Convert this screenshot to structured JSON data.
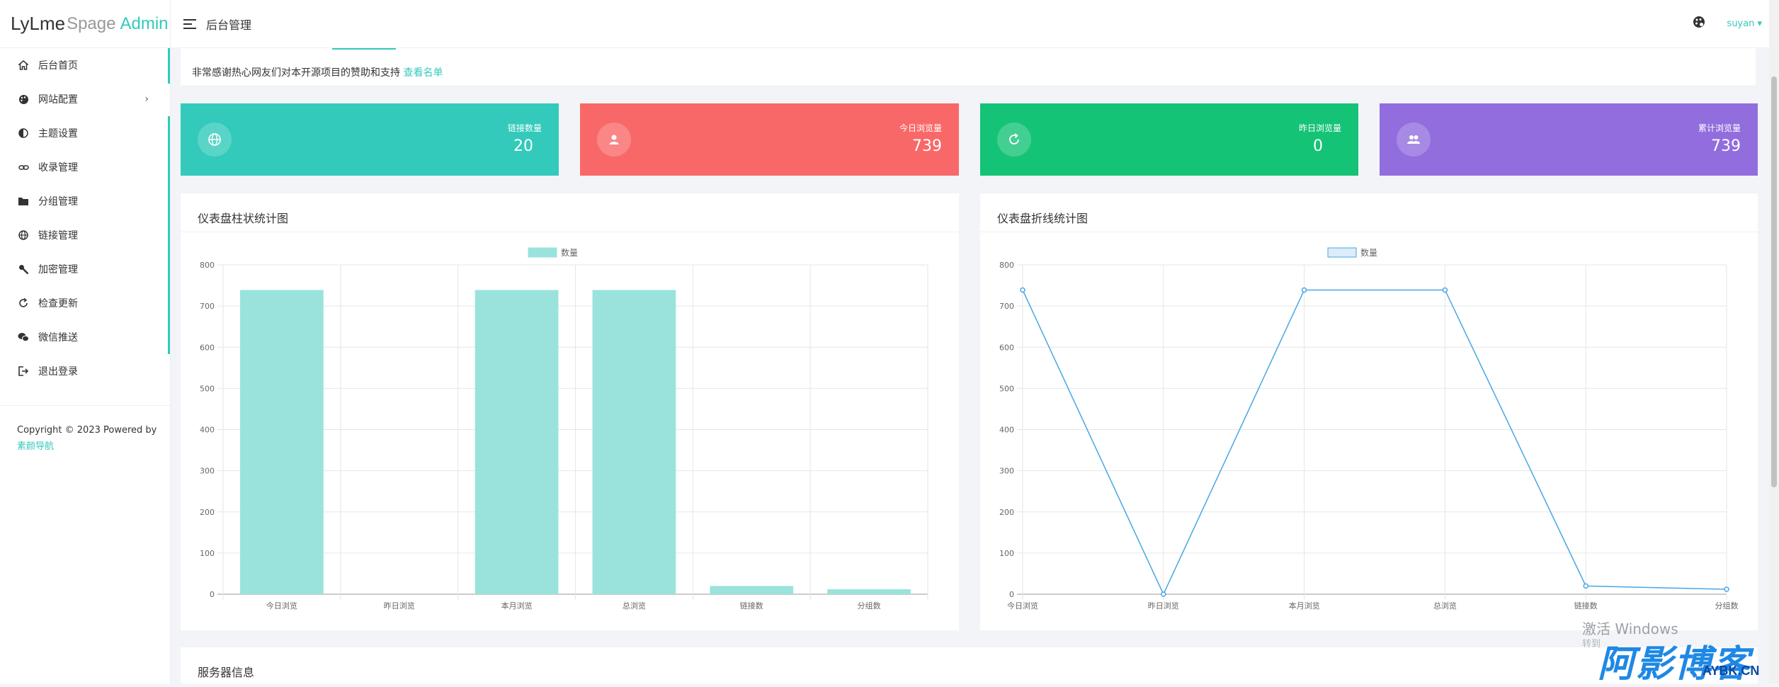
{
  "brand": {
    "part1": "LyLme",
    "part2": "Spage",
    "part3": "Admin"
  },
  "sidebar": {
    "items": [
      {
        "label": "后台首页",
        "icon": "home-icon"
      },
      {
        "label": "网站配置",
        "icon": "palette-icon",
        "arrow": "›"
      },
      {
        "label": "主题设置",
        "icon": "contrast-icon"
      },
      {
        "label": "收录管理",
        "icon": "link-icon"
      },
      {
        "label": "分组管理",
        "icon": "folder-icon"
      },
      {
        "label": "链接管理",
        "icon": "globe-icon"
      },
      {
        "label": "加密管理",
        "icon": "key-icon"
      },
      {
        "label": "检查更新",
        "icon": "refresh-icon"
      },
      {
        "label": "微信推送",
        "icon": "wechat-icon"
      },
      {
        "label": "退出登录",
        "icon": "logout-icon"
      }
    ],
    "copyright": "Copyright © 2023 Powered by",
    "copyright_link": "素颜导航"
  },
  "header": {
    "title": "后台管理",
    "user": "suyan ▾"
  },
  "notice": {
    "text": "非常感谢热心网友们对本开源项目的赞助和支持",
    "link": "查看名单"
  },
  "stats": [
    {
      "label": "链接数量",
      "value": "20",
      "color": "#33cabb",
      "icon": "globe-icon"
    },
    {
      "label": "今日浏览量",
      "value": "739",
      "color": "#f96868",
      "icon": "user-icon"
    },
    {
      "label": "昨日浏览量",
      "value": "0",
      "color": "#15c377",
      "icon": "refresh-icon"
    },
    {
      "label": "累计浏览量",
      "value": "739",
      "color": "#926dde",
      "icon": "users-icon"
    }
  ],
  "bar_card": {
    "title": "仪表盘柱状统计图"
  },
  "line_card": {
    "title": "仪表盘折线统计图"
  },
  "server_card": {
    "title": "服务器信息"
  },
  "chart_data": [
    {
      "type": "bar",
      "title": "仪表盘柱状统计图",
      "categories": [
        "今日浏览",
        "昨日浏览",
        "本月浏览",
        "总浏览",
        "链接数",
        "分组数"
      ],
      "series": [
        {
          "name": "数量",
          "values": [
            739,
            0,
            739,
            739,
            20,
            12
          ]
        }
      ],
      "yticks": [
        "0",
        "100",
        "200",
        "300",
        "400",
        "500",
        "600",
        "700",
        "800"
      ],
      "ylim": [
        0,
        800
      ],
      "bar_color": "#9ae3dc",
      "legend": "top-center",
      "grid": true
    },
    {
      "type": "line",
      "title": "仪表盘折线统计图",
      "categories": [
        "今日浏览",
        "昨日浏览",
        "本月浏览",
        "总浏览",
        "链接数",
        "分组数"
      ],
      "series": [
        {
          "name": "数量",
          "values": [
            739,
            0,
            739,
            739,
            20,
            12
          ]
        }
      ],
      "yticks": [
        "0",
        "100",
        "200",
        "300",
        "400",
        "500",
        "600",
        "700",
        "800"
      ],
      "ylim": [
        0,
        800
      ],
      "line_color": "#48a6e6",
      "legend": "top-center",
      "grid": true
    }
  ],
  "watermark": {
    "line1": "激活 Windows",
    "line2": "转到",
    "logo": "阿影博客",
    "logo_sub": "AYBK.CN"
  }
}
